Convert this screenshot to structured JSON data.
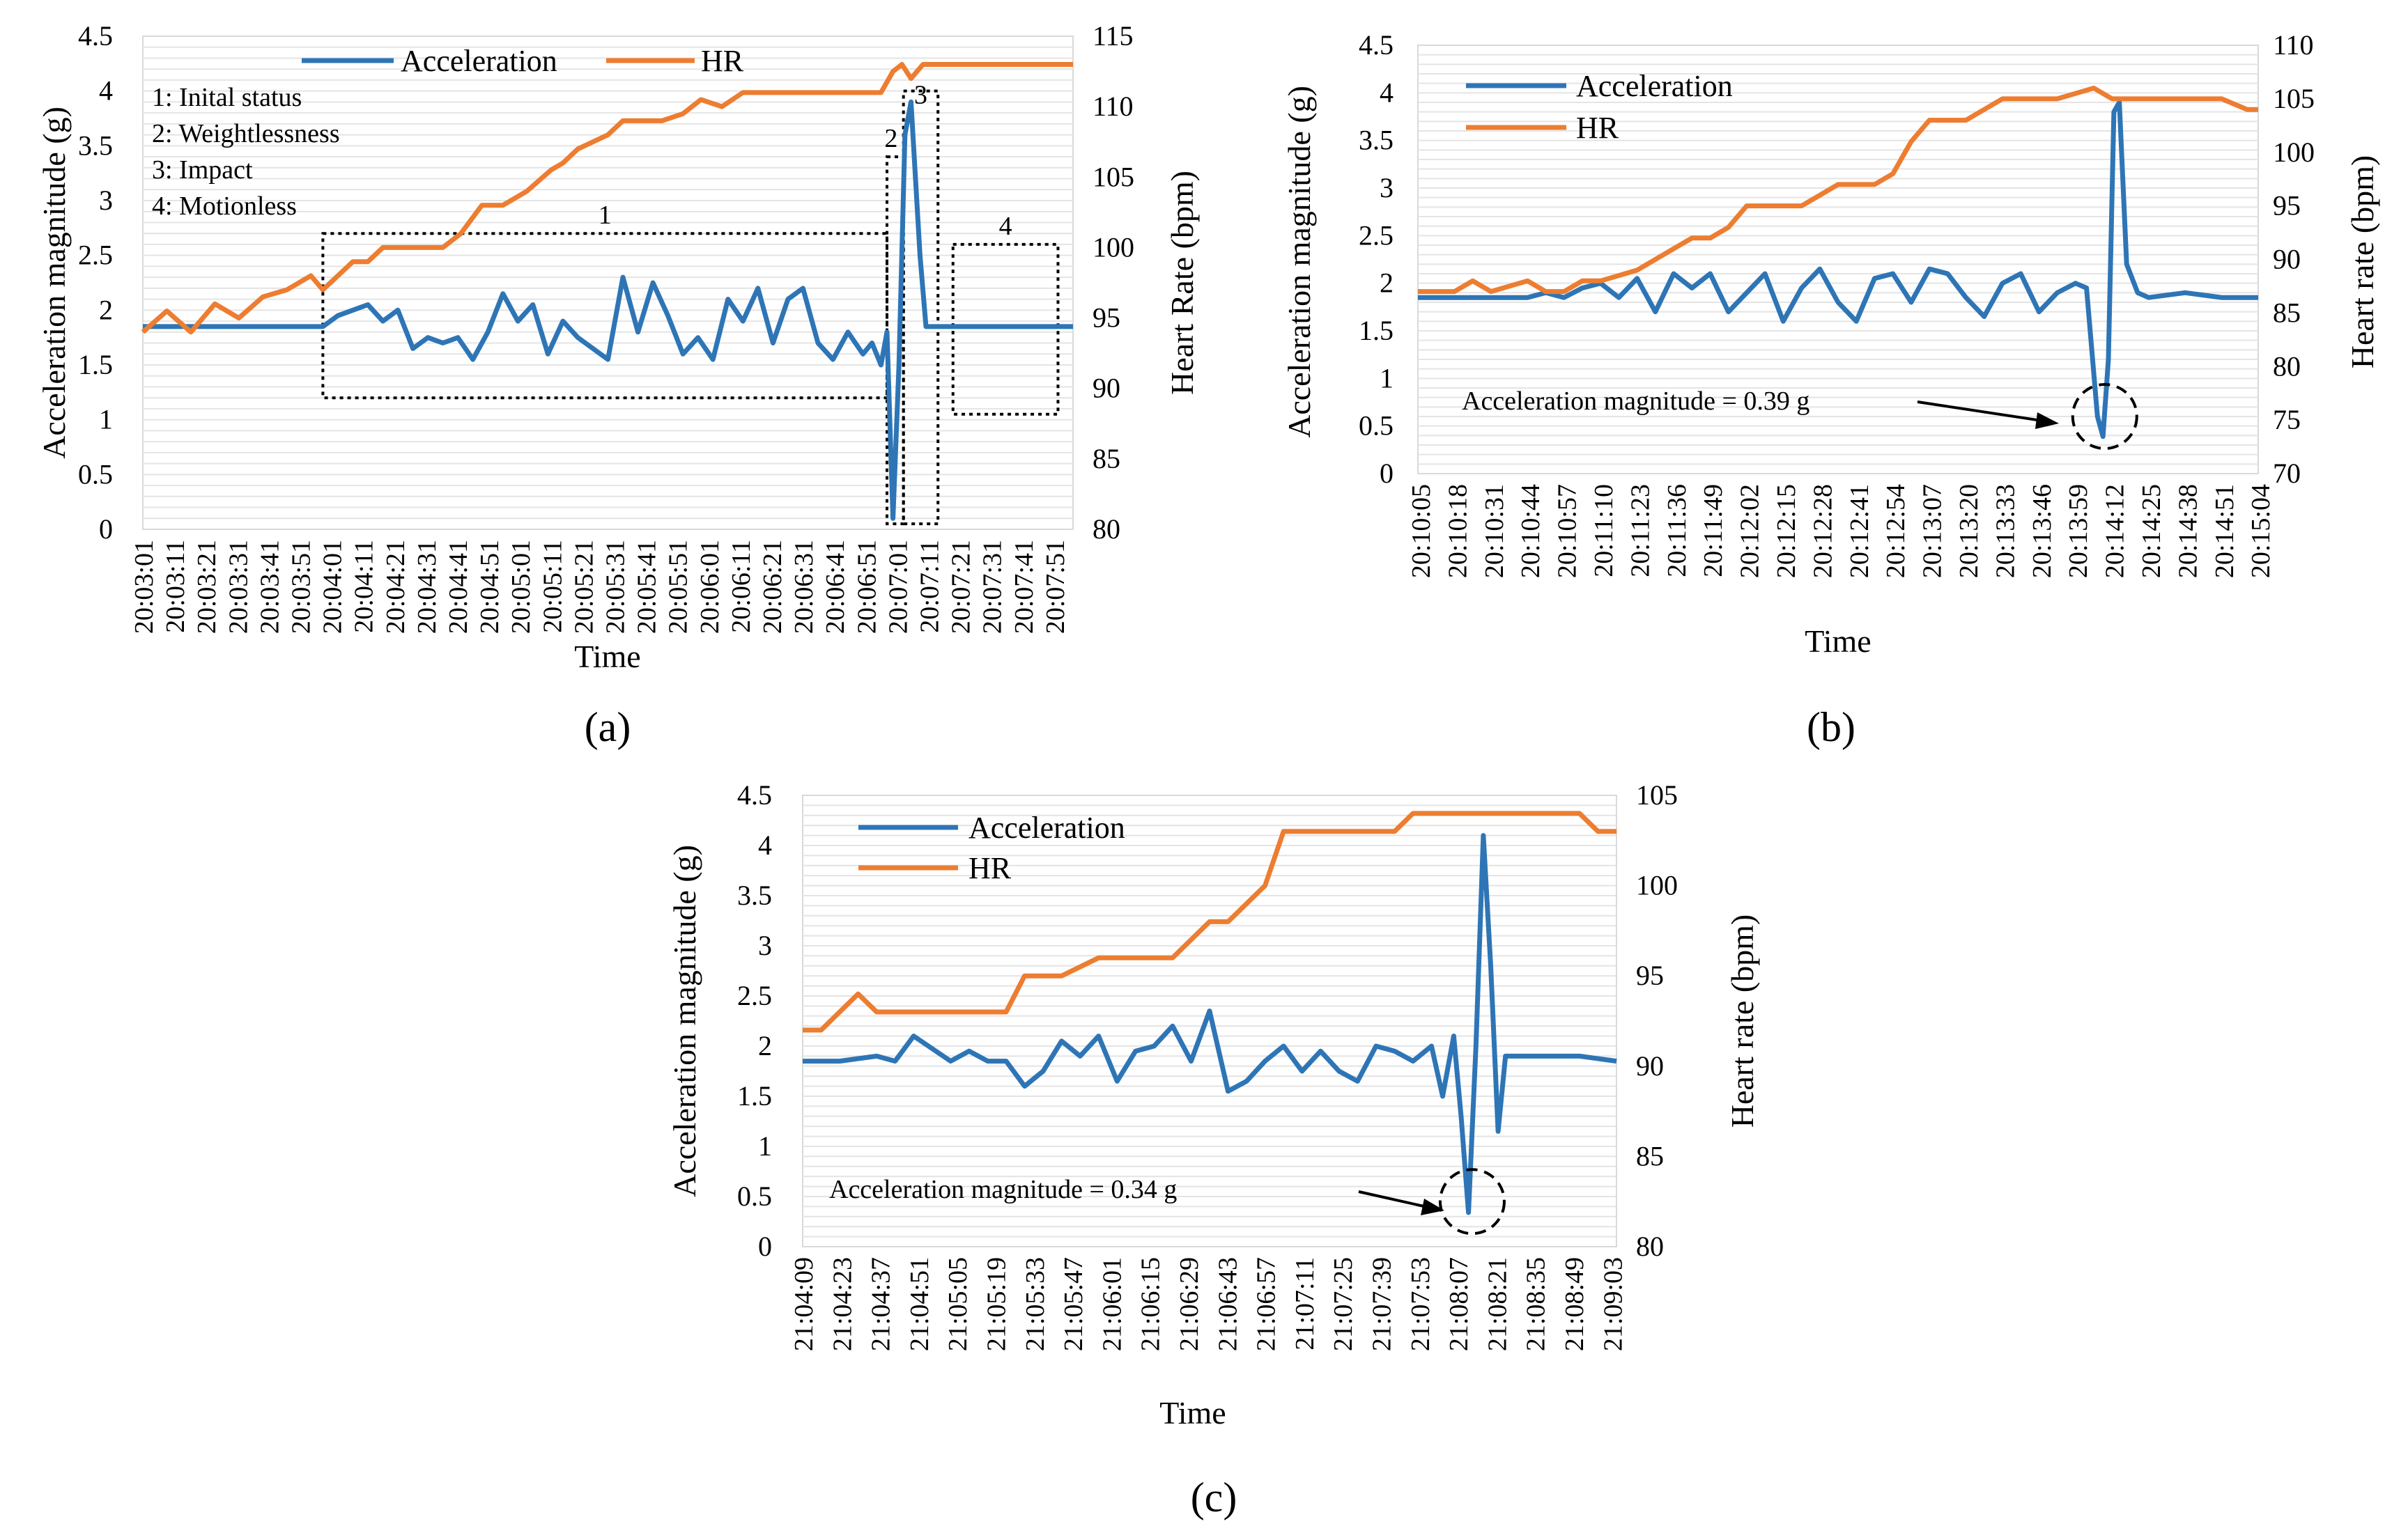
{
  "chart_data": [
    {
      "type": "line",
      "panel_label": "(a)",
      "xlabel": "Time",
      "ylabel": "Acceleration magnitude (g)",
      "y2label": "Heart Rate (bpm)",
      "ylim": [
        0,
        4.5
      ],
      "y_ticks": [
        "0",
        "0.5",
        "1",
        "1.5",
        "2",
        "2.5",
        "3",
        "3.5",
        "4",
        "4.5"
      ],
      "y2lim": [
        80,
        115
      ],
      "y2_ticks": [
        "80",
        "85",
        "90",
        "95",
        "100",
        "105",
        "110",
        "115"
      ],
      "x_ticks": [
        "20:03:01",
        "20:03:11",
        "20:03:21",
        "20:03:31",
        "20:03:41",
        "20:03:51",
        "20:04:01",
        "20:04:11",
        "20:04:21",
        "20:04:31",
        "20:04:41",
        "20:04:51",
        "20:05:01",
        "20:05:11",
        "20:05:21",
        "20:05:31",
        "20:05:41",
        "20:05:51",
        "20:06:01",
        "20:06:11",
        "20:06:21",
        "20:06:31",
        "20:06:41",
        "20:06:51",
        "20:07:01",
        "20:07:11",
        "20:07:21",
        "20:07:31",
        "20:07:41",
        "20:07:51"
      ],
      "x_range": [
        0,
        31
      ],
      "grid": true,
      "legend": "top",
      "legend_entries": [
        "Acceleration",
        "HR"
      ],
      "colors": {
        "Acceleration": "#2e75b6",
        "HR": "#ed7d31"
      },
      "annotations": [
        "1: Inital status",
        "2: Weightlessness",
        "3: Impact",
        "4: Motionless"
      ],
      "region_labels": [
        "1",
        "2",
        "3",
        "4"
      ],
      "regions": [
        {
          "label": "1",
          "x0": 6.0,
          "x1": 24.8,
          "y0": 1.2,
          "y1": 2.7
        },
        {
          "label": "2",
          "x0": 24.8,
          "x1": 25.35,
          "y0": 0.05,
          "y1": 3.4
        },
        {
          "label": "3",
          "x0": 25.35,
          "x1": 26.5,
          "y0": 0.05,
          "y1": 4.0
        },
        {
          "label": "4",
          "x0": 27.0,
          "x1": 30.5,
          "y0": 1.05,
          "y1": 2.6
        }
      ],
      "series": [
        {
          "name": "Acceleration",
          "axis": "left",
          "x": [
            0,
            1,
            2,
            3,
            4,
            5,
            6,
            6.5,
            7,
            7.5,
            8,
            8.5,
            9,
            9.5,
            10,
            10.5,
            11,
            11.5,
            12,
            12.5,
            13,
            13.5,
            14,
            14.5,
            15,
            15.5,
            16,
            16.5,
            17,
            17.5,
            18,
            18.5,
            19,
            19.5,
            20,
            20.5,
            21,
            21.5,
            22,
            22.5,
            23,
            23.5,
            24,
            24.3,
            24.6,
            24.8,
            25.0,
            25.2,
            25.4,
            25.6,
            25.9,
            26.1,
            26.5,
            27,
            28,
            29,
            30,
            31
          ],
          "y": [
            1.85,
            1.85,
            1.85,
            1.85,
            1.85,
            1.85,
            1.85,
            1.95,
            2.0,
            2.05,
            1.9,
            2.0,
            1.65,
            1.75,
            1.7,
            1.75,
            1.55,
            1.8,
            2.15,
            1.9,
            2.05,
            1.6,
            1.9,
            1.75,
            1.65,
            1.55,
            2.3,
            1.8,
            2.25,
            1.95,
            1.6,
            1.75,
            1.55,
            2.1,
            1.9,
            2.2,
            1.7,
            2.1,
            2.2,
            1.7,
            1.55,
            1.8,
            1.6,
            1.7,
            1.5,
            1.8,
            0.1,
            1.5,
            3.6,
            3.9,
            2.5,
            1.85,
            1.85,
            1.85,
            1.85,
            1.85,
            1.85,
            1.85
          ]
        },
        {
          "name": "HR",
          "axis": "right",
          "x": [
            0,
            0.8,
            1.6,
            2.4,
            3.2,
            4,
            4.8,
            5.6,
            6,
            6.5,
            7,
            7.5,
            8,
            8.6,
            9.4,
            10,
            10.6,
            11.3,
            12,
            12.8,
            13.6,
            14,
            14.5,
            15,
            15.5,
            16,
            16.6,
            17.3,
            18,
            18.6,
            19.3,
            20,
            20.5,
            21,
            21.5,
            22,
            22.7,
            23.4,
            24,
            24.6,
            25,
            25.3,
            25.6,
            26,
            26.5,
            27,
            28,
            29,
            30,
            31
          ],
          "y": [
            94,
            95.5,
            94,
            96,
            95,
            96.5,
            97,
            98,
            97,
            98,
            99,
            99,
            100,
            100,
            100,
            100,
            101,
            103,
            103,
            104,
            105.5,
            106,
            107,
            107.5,
            108,
            109,
            109,
            109,
            109.5,
            110.5,
            110,
            111,
            111,
            111,
            111,
            111,
            111,
            111,
            111,
            111,
            112.5,
            113,
            112,
            113,
            113,
            113,
            113,
            113,
            113,
            113
          ]
        }
      ]
    },
    {
      "type": "line",
      "panel_label": "(b)",
      "xlabel": "Time",
      "ylabel": "Acceleration magnitude (g)",
      "y2label": "Heart rate (bpm)",
      "ylim": [
        0,
        4.5
      ],
      "y_ticks": [
        "0",
        "0.5",
        "1",
        "1.5",
        "2",
        "2.5",
        "3",
        "3.5",
        "4",
        "4.5"
      ],
      "y2lim": [
        70,
        110
      ],
      "y2_ticks": [
        "70",
        "75",
        "80",
        "85",
        "90",
        "95",
        "100",
        "105",
        "110"
      ],
      "x_ticks": [
        "20:10:05",
        "20:10:18",
        "20:10:31",
        "20:10:44",
        "20:10:57",
        "20:11:10",
        "20:11:23",
        "20:11:36",
        "20:11:49",
        "20:12:02",
        "20:12:15",
        "20:12:28",
        "20:12:41",
        "20:12:54",
        "20:13:07",
        "20:13:20",
        "20:13:33",
        "20:13:46",
        "20:13:59",
        "20:14:12",
        "20:14:25",
        "20:14:38",
        "20:14:51",
        "20:15:04"
      ],
      "x_range": [
        0,
        23
      ],
      "grid": true,
      "legend": "top-left",
      "legend_entries": [
        "Acceleration",
        "HR"
      ],
      "colors": {
        "Acceleration": "#2e75b6",
        "HR": "#ed7d31"
      },
      "annotation": "Acceleration magnitude = 0.39 g",
      "circle": {
        "x": 18.8,
        "y": 0.6
      },
      "series": [
        {
          "name": "Acceleration",
          "axis": "left",
          "x": [
            0,
            1,
            2,
            3,
            3.5,
            4,
            4.5,
            5,
            5.5,
            6,
            6.5,
            7,
            7.5,
            8,
            8.5,
            9,
            9.5,
            10,
            10.5,
            11,
            11.5,
            12,
            12.5,
            13,
            13.5,
            14,
            14.5,
            15,
            15.5,
            16,
            16.5,
            17,
            17.5,
            18,
            18.3,
            18.6,
            18.75,
            18.9,
            19.05,
            19.2,
            19.4,
            19.7,
            20,
            21,
            22,
            23
          ],
          "y": [
            1.85,
            1.85,
            1.85,
            1.85,
            1.9,
            1.85,
            1.95,
            2.0,
            1.85,
            2.05,
            1.7,
            2.1,
            1.95,
            2.1,
            1.7,
            1.9,
            2.1,
            1.6,
            1.95,
            2.15,
            1.8,
            1.6,
            2.05,
            2.1,
            1.8,
            2.15,
            2.1,
            1.85,
            1.65,
            2.0,
            2.1,
            1.7,
            1.9,
            2.0,
            1.95,
            0.6,
            0.39,
            1.2,
            3.8,
            3.9,
            2.2,
            1.9,
            1.85,
            1.9,
            1.85,
            1.85
          ]
        },
        {
          "name": "HR",
          "axis": "right",
          "x": [
            0,
            1,
            1.5,
            2,
            3,
            3.5,
            4,
            4.5,
            5,
            6,
            6.5,
            7,
            7.5,
            8,
            8.5,
            9,
            10,
            10.5,
            11,
            11.5,
            12,
            12.5,
            13,
            13.5,
            14,
            15,
            16,
            16.5,
            17,
            17.5,
            18,
            18.5,
            19,
            19.5,
            20,
            21,
            22,
            22.7,
            23
          ],
          "y": [
            87,
            87,
            88,
            87,
            88,
            87,
            87,
            88,
            88,
            89,
            90,
            91,
            92,
            92,
            93,
            95,
            95,
            95,
            96,
            97,
            97,
            97,
            98,
            101,
            103,
            103,
            105,
            105,
            105,
            105,
            105.5,
            106,
            105,
            105,
            105,
            105,
            105,
            104,
            104
          ]
        }
      ]
    },
    {
      "type": "line",
      "panel_label": "(c)",
      "xlabel": "Time",
      "ylabel": "Acceleration magnitude (g)",
      "y2label": "Heart rate (bpm)",
      "ylim": [
        0,
        4.5
      ],
      "y_ticks": [
        "0",
        "0.5",
        "1",
        "1.5",
        "2",
        "2.5",
        "3",
        "3.5",
        "4",
        "4.5"
      ],
      "y2lim": [
        80,
        105
      ],
      "y2_ticks": [
        "80",
        "85",
        "90",
        "95",
        "100",
        "105"
      ],
      "x_ticks": [
        "21:04:09",
        "21:04:23",
        "21:04:37",
        "21:04:51",
        "21:05:05",
        "21:05:19",
        "21:05:33",
        "21:05:47",
        "21:06:01",
        "21:06:15",
        "21:06:29",
        "21:06:43",
        "21:06:57",
        "21:07:11",
        "21:07:25",
        "21:07:39",
        "21:07:53",
        "21:08:07",
        "21:08:21",
        "21:08:35",
        "21:08:49",
        "21:09:03"
      ],
      "x_range": [
        0,
        22
      ],
      "grid": true,
      "legend": "top-left",
      "legend_entries": [
        "Acceleration",
        "HR"
      ],
      "colors": {
        "Acceleration": "#2e75b6",
        "HR": "#ed7d31"
      },
      "annotation": "Acceleration magnitude = 0.34 g",
      "circle": {
        "x": 18.1,
        "y": 0.45
      },
      "series": [
        {
          "name": "Acceleration",
          "axis": "left",
          "x": [
            0,
            1,
            2,
            2.5,
            3,
            4,
            4.5,
            5,
            5.5,
            6,
            6.5,
            7,
            7.5,
            8,
            8.5,
            9,
            9.5,
            10,
            10.5,
            11,
            11.5,
            12,
            12.5,
            13,
            13.5,
            14,
            14.5,
            15,
            15.5,
            16,
            16.5,
            17,
            17.3,
            17.6,
            17.8,
            18.0,
            18.2,
            18.4,
            18.6,
            18.8,
            19,
            20,
            21,
            22
          ],
          "y": [
            1.85,
            1.85,
            1.9,
            1.85,
            2.1,
            1.85,
            1.95,
            1.85,
            1.85,
            1.6,
            1.75,
            2.05,
            1.9,
            2.1,
            1.65,
            1.95,
            2.0,
            2.2,
            1.85,
            2.35,
            1.55,
            1.65,
            1.85,
            2.0,
            1.75,
            1.95,
            1.75,
            1.65,
            2.0,
            1.95,
            1.85,
            2.0,
            1.5,
            2.1,
            1.3,
            0.34,
            2.0,
            4.1,
            2.8,
            1.15,
            1.9,
            1.9,
            1.9,
            1.85
          ]
        },
        {
          "name": "HR",
          "axis": "right",
          "x": [
            0,
            0.5,
            1,
            1.5,
            2,
            3,
            4,
            5,
            5.5,
            6,
            6.5,
            7,
            8,
            9,
            10,
            11,
            11.5,
            12,
            12.5,
            13,
            14,
            15,
            15.5,
            16,
            16.5,
            17,
            17.5,
            18,
            18.5,
            19,
            20,
            21,
            21.5,
            22
          ],
          "y": [
            92,
            92,
            93,
            94,
            93,
            93,
            93,
            93,
            93,
            95,
            95,
            95,
            96,
            96,
            96,
            98,
            98,
            99,
            100,
            103,
            103,
            103,
            103,
            103,
            104,
            104,
            104,
            104,
            104,
            104,
            104,
            104,
            103,
            103
          ]
        }
      ]
    }
  ]
}
